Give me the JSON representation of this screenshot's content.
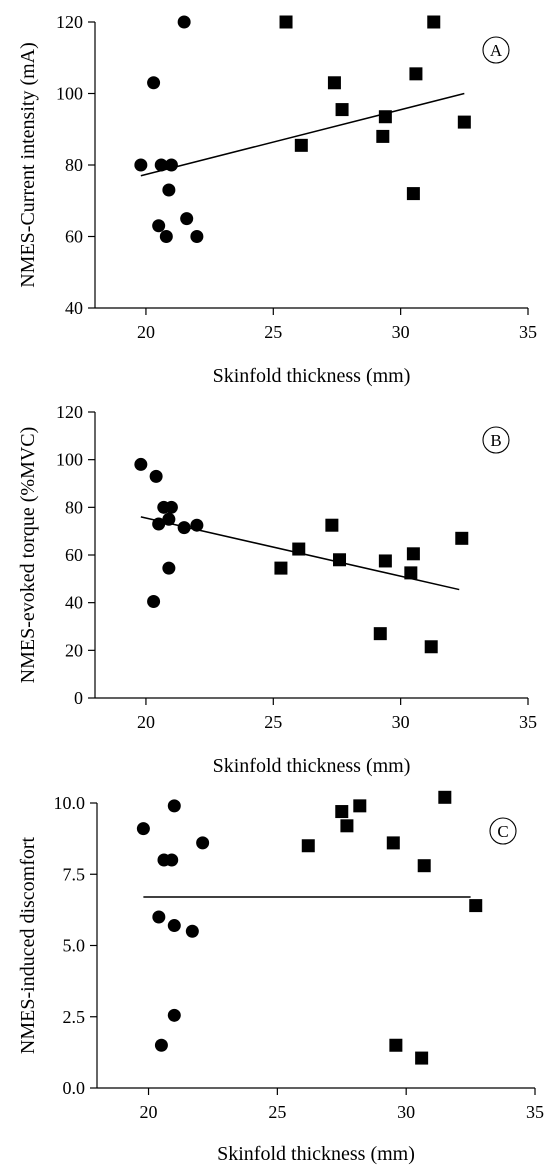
{
  "chart_data": [
    {
      "type": "scatter",
      "panel_label": "A",
      "xlabel": "Skinfold thickness (mm)",
      "ylabel": "NMES-Current intensity (mA)",
      "xlim": [
        18,
        35
      ],
      "ylim": [
        40,
        120
      ],
      "xticks": [
        20,
        25,
        30,
        35
      ],
      "yticks": [
        40,
        60,
        80,
        100,
        120
      ],
      "ytick_labels": [
        "40",
        "60",
        "80",
        "100",
        "120"
      ],
      "grid": false,
      "series": [
        {
          "marker": "circle",
          "points": [
            [
              19.8,
              80
            ],
            [
              20.3,
              103
            ],
            [
              20.6,
              80
            ],
            [
              21.5,
              120
            ],
            [
              21.0,
              80
            ],
            [
              20.5,
              63
            ],
            [
              20.8,
              60
            ],
            [
              20.9,
              73
            ],
            [
              21.6,
              65
            ],
            [
              22.0,
              60
            ]
          ]
        },
        {
          "marker": "square",
          "points": [
            [
              25.5,
              120
            ],
            [
              26.1,
              85.5
            ],
            [
              27.4,
              103
            ],
            [
              27.7,
              95.5
            ],
            [
              29.3,
              88
            ],
            [
              29.4,
              93.5
            ],
            [
              30.5,
              72
            ],
            [
              30.6,
              105.5
            ],
            [
              31.3,
              120
            ],
            [
              32.5,
              92
            ]
          ]
        }
      ],
      "trendline": [
        [
          19.8,
          77
        ],
        [
          32.5,
          100
        ]
      ]
    },
    {
      "type": "scatter",
      "panel_label": "B",
      "xlabel": "Skinfold thickness (mm)",
      "ylabel": "NMES-evoked torque (%MVC)",
      "xlim": [
        18,
        35
      ],
      "ylim": [
        0,
        120
      ],
      "xticks": [
        20,
        25,
        30,
        35
      ],
      "yticks": [
        0,
        20,
        40,
        60,
        80,
        100,
        120
      ],
      "ytick_labels": [
        "0",
        "20",
        "40",
        "60",
        "80",
        "100",
        "120"
      ],
      "grid": false,
      "series": [
        {
          "marker": "circle",
          "points": [
            [
              19.8,
              98
            ],
            [
              20.4,
              93
            ],
            [
              20.5,
              73
            ],
            [
              20.7,
              80
            ],
            [
              21.0,
              80
            ],
            [
              20.9,
              75
            ],
            [
              20.9,
              54.5
            ],
            [
              20.3,
              40.5
            ],
            [
              21.5,
              71.5
            ],
            [
              22.0,
              72.5
            ]
          ]
        },
        {
          "marker": "square",
          "points": [
            [
              25.3,
              54.5
            ],
            [
              26.0,
              62.5
            ],
            [
              27.3,
              72.5
            ],
            [
              27.6,
              58
            ],
            [
              29.2,
              27
            ],
            [
              29.4,
              57.5
            ],
            [
              30.4,
              52.5
            ],
            [
              30.5,
              60.5
            ],
            [
              31.2,
              21.5
            ],
            [
              32.4,
              67
            ]
          ]
        }
      ],
      "trendline": [
        [
          19.8,
          76
        ],
        [
          32.3,
          45.5
        ]
      ]
    },
    {
      "type": "scatter",
      "panel_label": "C",
      "xlabel": "Skinfold thickness (mm)",
      "ylabel": "NMES-induced discomfort",
      "xlim": [
        18,
        35
      ],
      "ylim": [
        0,
        10
      ],
      "xticks": [
        20,
        25,
        30,
        35
      ],
      "yticks": [
        0,
        2.5,
        5,
        7.5,
        10
      ],
      "ytick_labels": [
        "0.0",
        "2.5",
        "5.0",
        "7.5",
        "10.0"
      ],
      "grid": false,
      "series": [
        {
          "marker": "circle",
          "points": [
            [
              19.8,
              9.1
            ],
            [
              21.0,
              9.9
            ],
            [
              20.6,
              8.0
            ],
            [
              20.9,
              8.0
            ],
            [
              22.1,
              8.6
            ],
            [
              20.4,
              6.0
            ],
            [
              21.0,
              5.7
            ],
            [
              21.7,
              5.5
            ],
            [
              21.0,
              2.55
            ],
            [
              20.5,
              1.5
            ]
          ]
        },
        {
          "marker": "square",
          "points": [
            [
              26.2,
              8.5
            ],
            [
              27.5,
              9.7
            ],
            [
              27.7,
              9.2
            ],
            [
              28.2,
              9.9
            ],
            [
              29.5,
              8.6
            ],
            [
              29.6,
              1.5
            ],
            [
              30.6,
              1.05
            ],
            [
              30.7,
              7.8
            ],
            [
              31.5,
              10.2
            ],
            [
              32.7,
              6.4
            ]
          ]
        }
      ],
      "trendline": [
        [
          19.8,
          6.7
        ],
        [
          32.5,
          6.7
        ]
      ]
    }
  ]
}
